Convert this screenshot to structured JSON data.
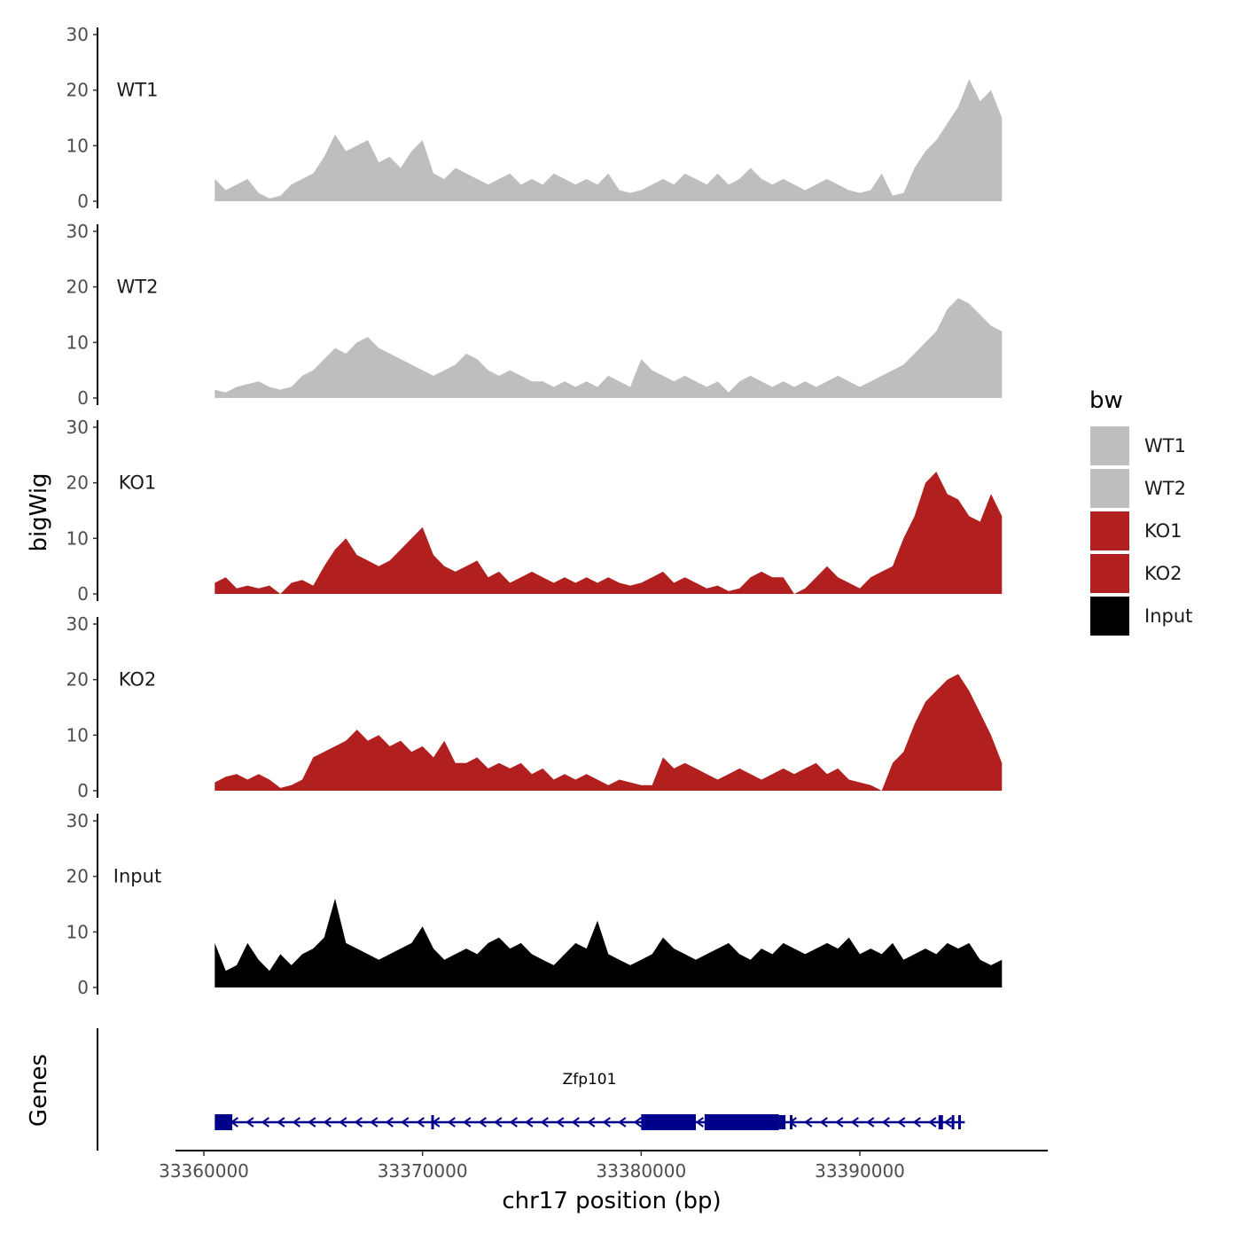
{
  "chart_data": {
    "type": "area",
    "x_unit": "bp",
    "xlabel": "chr17 position (bp)",
    "ylabel": "bigWig",
    "x_range": [
      33360500,
      33396500
    ],
    "x_ticks": [
      33360000,
      33370000,
      33380000,
      33390000
    ],
    "x_tick_labels": [
      "33360000",
      "33370000",
      "33380000",
      "33390000"
    ],
    "ylim": [
      0,
      30
    ],
    "y_ticks": [
      0,
      10,
      20,
      30
    ],
    "y_tick_labels": [
      "0",
      "10",
      "20",
      "30"
    ],
    "legend": {
      "title": "bw",
      "position": "right",
      "entries": [
        {
          "label": "WT1",
          "color": "#bebebe"
        },
        {
          "label": "WT2",
          "color": "#bebebe"
        },
        {
          "label": "KO1",
          "color": "#b21f1f"
        },
        {
          "label": "KO2",
          "color": "#b21f1f"
        },
        {
          "label": "Input",
          "color": "#000000"
        }
      ]
    },
    "series": [
      {
        "name": "WT1",
        "color": "#bebebe",
        "x": [
          33360500,
          33361000,
          33361500,
          33362000,
          33362500,
          33363000,
          33363500,
          33364000,
          33364500,
          33365000,
          33365500,
          33366000,
          33366500,
          33367000,
          33367500,
          33368000,
          33368500,
          33369000,
          33369500,
          33370000,
          33370500,
          33371000,
          33371500,
          33372000,
          33372500,
          33373000,
          33373500,
          33374000,
          33374500,
          33375000,
          33375500,
          33376000,
          33376500,
          33377000,
          33377500,
          33378000,
          33378500,
          33379000,
          33379500,
          33380000,
          33380500,
          33381000,
          33381500,
          33382000,
          33382500,
          33383000,
          33383500,
          33384000,
          33384500,
          33385000,
          33385500,
          33386000,
          33386500,
          33387000,
          33387500,
          33388000,
          33388500,
          33389000,
          33389500,
          33390000,
          33390500,
          33391000,
          33391500,
          33392000,
          33392500,
          33393000,
          33393500,
          33394000,
          33394500,
          33395000,
          33395500,
          33396000,
          33396500
        ],
        "values": [
          4,
          2,
          3,
          4,
          1.5,
          0.5,
          1,
          3,
          4,
          5,
          8,
          12,
          9,
          10,
          11,
          7,
          8,
          6,
          9,
          11,
          5,
          4,
          6,
          5,
          4,
          3,
          4,
          5,
          3,
          4,
          3,
          5,
          4,
          3,
          4,
          3,
          5,
          2,
          1.5,
          2,
          3,
          4,
          3,
          5,
          4,
          3,
          5,
          3,
          4,
          6,
          4,
          3,
          4,
          3,
          2,
          3,
          4,
          3,
          2,
          1.5,
          2,
          5,
          1,
          1.5,
          6,
          9,
          11,
          14,
          17,
          22,
          18,
          20,
          15
        ]
      },
      {
        "name": "WT2",
        "color": "#bebebe",
        "x": [
          33360500,
          33361000,
          33361500,
          33362000,
          33362500,
          33363000,
          33363500,
          33364000,
          33364500,
          33365000,
          33365500,
          33366000,
          33366500,
          33367000,
          33367500,
          33368000,
          33368500,
          33369000,
          33369500,
          33370000,
          33370500,
          33371000,
          33371500,
          33372000,
          33372500,
          33373000,
          33373500,
          33374000,
          33374500,
          33375000,
          33375500,
          33376000,
          33376500,
          33377000,
          33377500,
          33378000,
          33378500,
          33379000,
          33379500,
          33380000,
          33380500,
          33381000,
          33381500,
          33382000,
          33382500,
          33383000,
          33383500,
          33384000,
          33384500,
          33385000,
          33385500,
          33386000,
          33386500,
          33387000,
          33387500,
          33388000,
          33388500,
          33389000,
          33389500,
          33390000,
          33390500,
          33391000,
          33391500,
          33392000,
          33392500,
          33393000,
          33393500,
          33394000,
          33394500,
          33395000,
          33395500,
          33396000,
          33396500
        ],
        "values": [
          1.5,
          1,
          2,
          2.5,
          3,
          2,
          1.5,
          2,
          4,
          5,
          7,
          9,
          8,
          10,
          11,
          9,
          8,
          7,
          6,
          5,
          4,
          5,
          6,
          8,
          7,
          5,
          4,
          5,
          4,
          3,
          3,
          2,
          3,
          2,
          3,
          2,
          4,
          3,
          2,
          7,
          5,
          4,
          3,
          4,
          3,
          2,
          3,
          1,
          3,
          4,
          3,
          2,
          3,
          2,
          3,
          2,
          3,
          4,
          3,
          2,
          3,
          4,
          5,
          6,
          8,
          10,
          12,
          16,
          18,
          17,
          15,
          13,
          12
        ]
      },
      {
        "name": "KO1",
        "color": "#b21f1f",
        "x": [
          33360500,
          33361000,
          33361500,
          33362000,
          33362500,
          33363000,
          33363500,
          33364000,
          33364500,
          33365000,
          33365500,
          33366000,
          33366500,
          33367000,
          33367500,
          33368000,
          33368500,
          33369000,
          33369500,
          33370000,
          33370500,
          33371000,
          33371500,
          33372000,
          33372500,
          33373000,
          33373500,
          33374000,
          33374500,
          33375000,
          33375500,
          33376000,
          33376500,
          33377000,
          33377500,
          33378000,
          33378500,
          33379000,
          33379500,
          33380000,
          33380500,
          33381000,
          33381500,
          33382000,
          33382500,
          33383000,
          33383500,
          33384000,
          33384500,
          33385000,
          33385500,
          33386000,
          33386500,
          33387000,
          33387500,
          33388000,
          33388500,
          33389000,
          33389500,
          33390000,
          33390500,
          33391000,
          33391500,
          33392000,
          33392500,
          33393000,
          33393500,
          33394000,
          33394500,
          33395000,
          33395500,
          33396000,
          33396500
        ],
        "values": [
          2,
          3,
          1,
          1.5,
          1,
          1.5,
          0,
          2,
          2.5,
          1.5,
          5,
          8,
          10,
          7,
          6,
          5,
          6,
          8,
          10,
          12,
          7,
          5,
          4,
          5,
          6,
          3,
          4,
          2,
          3,
          4,
          3,
          2,
          3,
          2,
          3,
          2,
          3,
          2,
          1.5,
          2,
          3,
          4,
          2,
          3,
          2,
          1,
          1.5,
          0.5,
          1,
          3,
          4,
          3,
          3,
          0,
          1,
          3,
          5,
          3,
          2,
          1,
          3,
          4,
          5,
          10,
          14,
          20,
          22,
          18,
          17,
          14,
          13,
          18,
          14
        ]
      },
      {
        "name": "KO2",
        "color": "#b21f1f",
        "x": [
          33360500,
          33361000,
          33361500,
          33362000,
          33362500,
          33363000,
          33363500,
          33364000,
          33364500,
          33365000,
          33365500,
          33366000,
          33366500,
          33367000,
          33367500,
          33368000,
          33368500,
          33369000,
          33369500,
          33370000,
          33370500,
          33371000,
          33371500,
          33372000,
          33372500,
          33373000,
          33373500,
          33374000,
          33374500,
          33375000,
          33375500,
          33376000,
          33376500,
          33377000,
          33377500,
          33378000,
          33378500,
          33379000,
          33379500,
          33380000,
          33380500,
          33381000,
          33381500,
          33382000,
          33382500,
          33383000,
          33383500,
          33384000,
          33384500,
          33385000,
          33385500,
          33386000,
          33386500,
          33387000,
          33387500,
          33388000,
          33388500,
          33389000,
          33389500,
          33390000,
          33390500,
          33391000,
          33391500,
          33392000,
          33392500,
          33393000,
          33393500,
          33394000,
          33394500,
          33395000,
          33395500,
          33396000,
          33396500
        ],
        "values": [
          1.5,
          2.5,
          3,
          2,
          3,
          2,
          0.5,
          1,
          2,
          6,
          7,
          8,
          9,
          11,
          9,
          10,
          8,
          9,
          7,
          8,
          6,
          9,
          5,
          5,
          6,
          4,
          5,
          4,
          5,
          3,
          4,
          2,
          3,
          2,
          3,
          2,
          1,
          2,
          1.5,
          1,
          1,
          6,
          4,
          5,
          4,
          3,
          2,
          3,
          4,
          3,
          2,
          3,
          4,
          3,
          4,
          5,
          3,
          4,
          2,
          1.5,
          1,
          0,
          5,
          7,
          12,
          16,
          18,
          20,
          21,
          18,
          14,
          10,
          5
        ]
      },
      {
        "name": "Input",
        "color": "#000000",
        "x": [
          33360500,
          33361000,
          33361500,
          33362000,
          33362500,
          33363000,
          33363500,
          33364000,
          33364500,
          33365000,
          33365500,
          33366000,
          33366500,
          33367000,
          33367500,
          33368000,
          33368500,
          33369000,
          33369500,
          33370000,
          33370500,
          33371000,
          33371500,
          33372000,
          33372500,
          33373000,
          33373500,
          33374000,
          33374500,
          33375000,
          33375500,
          33376000,
          33376500,
          33377000,
          33377500,
          33378000,
          33378500,
          33379000,
          33379500,
          33380000,
          33380500,
          33381000,
          33381500,
          33382000,
          33382500,
          33383000,
          33383500,
          33384000,
          33384500,
          33385000,
          33385500,
          33386000,
          33386500,
          33387000,
          33387500,
          33388000,
          33388500,
          33389000,
          33389500,
          33390000,
          33390500,
          33391000,
          33391500,
          33392000,
          33392500,
          33393000,
          33393500,
          33394000,
          33394500,
          33395000,
          33395500,
          33396000,
          33396500
        ],
        "values": [
          8,
          3,
          4,
          8,
          5,
          3,
          6,
          4,
          6,
          7,
          9,
          16,
          8,
          7,
          6,
          5,
          6,
          7,
          8,
          11,
          7,
          5,
          6,
          7,
          6,
          8,
          9,
          7,
          8,
          6,
          5,
          4,
          6,
          8,
          7,
          12,
          6,
          5,
          4,
          5,
          6,
          9,
          7,
          6,
          5,
          6,
          7,
          8,
          6,
          5,
          7,
          6,
          8,
          7,
          6,
          7,
          8,
          7,
          9,
          6,
          7,
          6,
          8,
          5,
          6,
          7,
          6,
          8,
          7,
          8,
          5,
          4,
          5
        ]
      }
    ],
    "gene_track": {
      "ylabel": "Genes",
      "gene": "Zfp101",
      "strand": "-",
      "start": 33360500,
      "end": 33394800,
      "exons": [
        {
          "start": 33360500,
          "end": 33361300
        },
        {
          "start": 33370400,
          "end": 33370500
        },
        {
          "start": 33380000,
          "end": 33382500
        },
        {
          "start": 33382900,
          "end": 33386300
        },
        {
          "start": 33386300,
          "end": 33386600
        },
        {
          "start": 33386800,
          "end": 33386900
        },
        {
          "start": 33393600,
          "end": 33393800
        },
        {
          "start": 33394200,
          "end": 33394300
        },
        {
          "start": 33394500,
          "end": 33394600
        }
      ],
      "color": "#00008b"
    }
  }
}
